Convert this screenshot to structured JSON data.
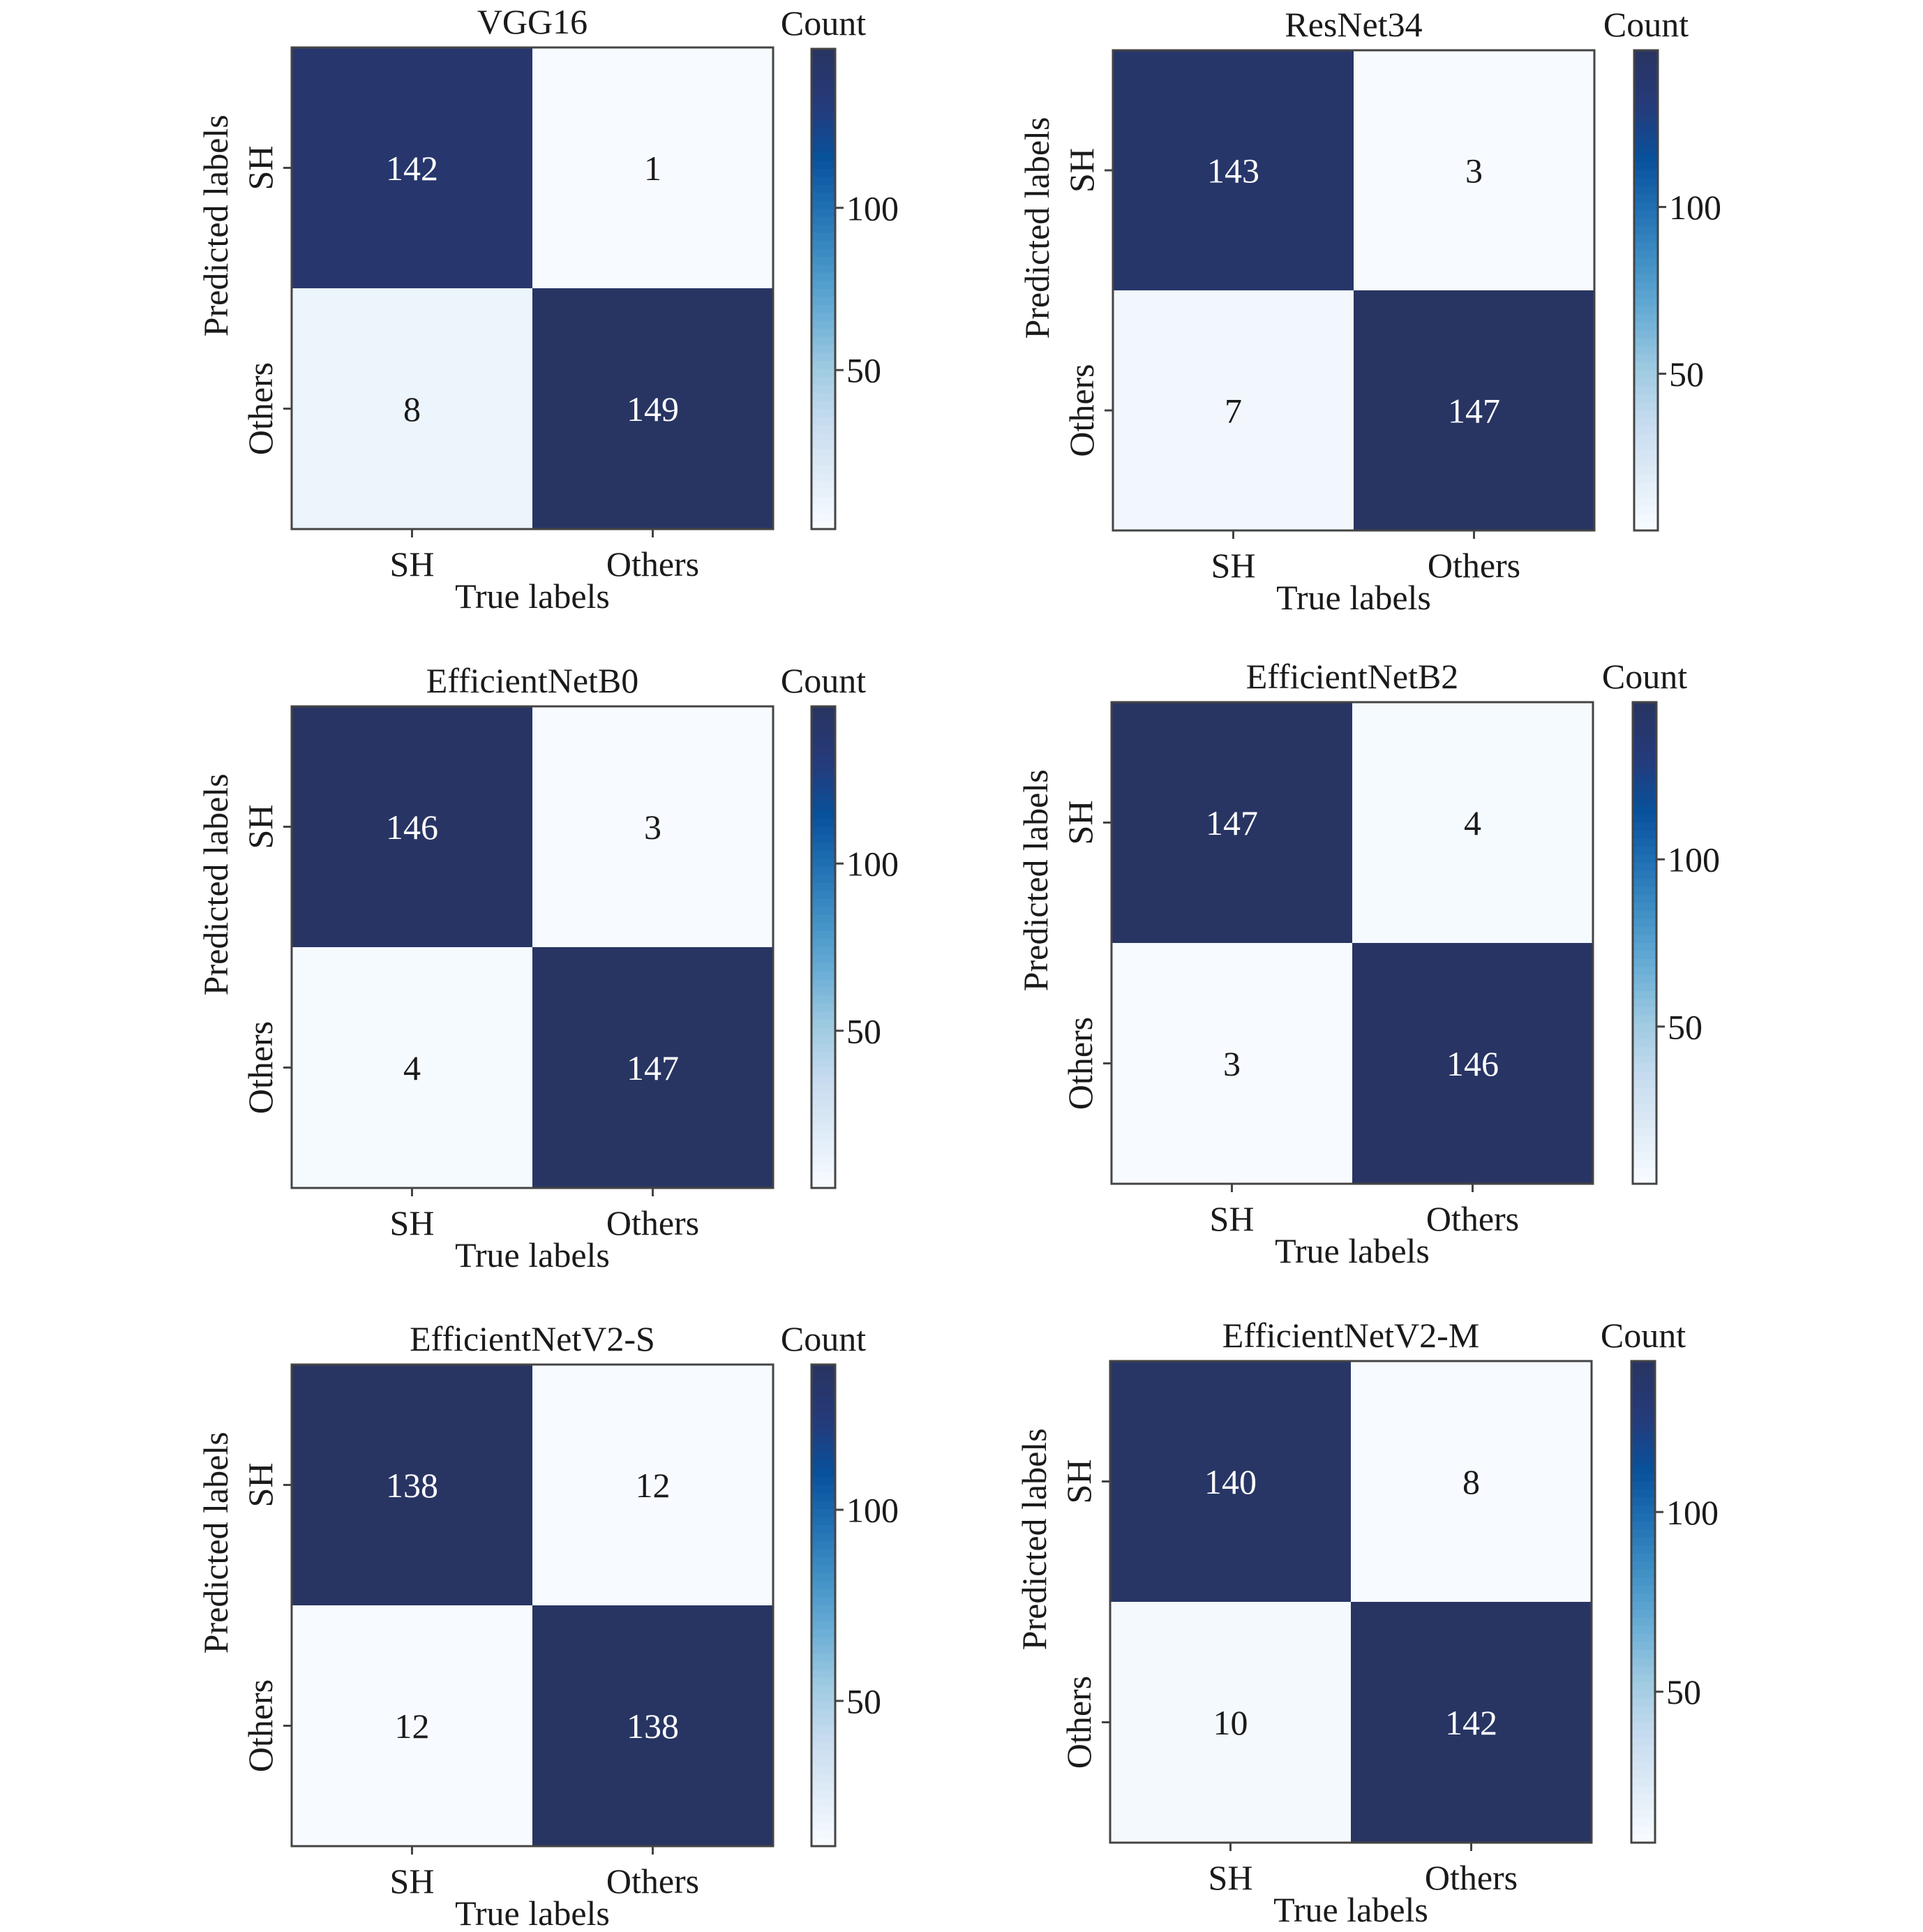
{
  "chart_data": [
    {
      "type": "heatmap",
      "title": "VGG16",
      "x_categories": [
        "SH",
        "Others"
      ],
      "y_categories": [
        "SH",
        "Others"
      ],
      "xlabel": "True labels",
      "ylabel": "Predicted labels",
      "values": [
        [
          142,
          1
        ],
        [
          8,
          149
        ]
      ],
      "colorbar_label": "Count",
      "colorbar_ticks": [
        50,
        100
      ],
      "vmin": 1,
      "vmax": 149
    },
    {
      "type": "heatmap",
      "title": "ResNet34",
      "x_categories": [
        "SH",
        "Others"
      ],
      "y_categories": [
        "SH",
        "Others"
      ],
      "xlabel": "True labels",
      "ylabel": "Predicted labels",
      "values": [
        [
          143,
          3
        ],
        [
          7,
          147
        ]
      ],
      "colorbar_label": "Count",
      "colorbar_ticks": [
        50,
        100
      ],
      "vmin": 3,
      "vmax": 147
    },
    {
      "type": "heatmap",
      "title": "EfficientNetB0",
      "x_categories": [
        "SH",
        "Others"
      ],
      "y_categories": [
        "SH",
        "Others"
      ],
      "xlabel": "True labels",
      "ylabel": "Predicted labels",
      "values": [
        [
          146,
          3
        ],
        [
          4,
          147
        ]
      ],
      "colorbar_label": "Count",
      "colorbar_ticks": [
        50,
        100
      ],
      "vmin": 3,
      "vmax": 147
    },
    {
      "type": "heatmap",
      "title": "EfficientNetB2",
      "x_categories": [
        "SH",
        "Others"
      ],
      "y_categories": [
        "SH",
        "Others"
      ],
      "xlabel": "True labels",
      "ylabel": "Predicted labels",
      "values": [
        [
          147,
          4
        ],
        [
          3,
          146
        ]
      ],
      "colorbar_label": "Count",
      "colorbar_ticks": [
        50,
        100
      ],
      "vmin": 3,
      "vmax": 147
    },
    {
      "type": "heatmap",
      "title": "EfficientNetV2-S",
      "x_categories": [
        "SH",
        "Others"
      ],
      "y_categories": [
        "SH",
        "Others"
      ],
      "xlabel": "True labels",
      "ylabel": "Predicted labels",
      "values": [
        [
          138,
          12
        ],
        [
          12,
          138
        ]
      ],
      "colorbar_label": "Count",
      "colorbar_ticks": [
        50,
        100
      ],
      "vmin": 12,
      "vmax": 138
    },
    {
      "type": "heatmap",
      "title": "EfficientNetV2-M",
      "x_categories": [
        "SH",
        "Others"
      ],
      "y_categories": [
        "SH",
        "Others"
      ],
      "xlabel": "True labels",
      "ylabel": "Predicted labels",
      "values": [
        [
          140,
          8
        ],
        [
          10,
          142
        ]
      ],
      "colorbar_label": "Count",
      "colorbar_ticks": [
        50,
        100
      ],
      "vmin": 8,
      "vmax": 142
    }
  ],
  "colors": {
    "colormap": [
      "#f7fbff",
      "#deebf7",
      "#c6dbef",
      "#9ecae1",
      "#6baed6",
      "#4292c6",
      "#2171b5",
      "#08519c",
      "#253a7a",
      "#283563"
    ],
    "axis_line": "#444444",
    "text_dark": "#1a1a1a",
    "text_light": "#ffffff"
  }
}
